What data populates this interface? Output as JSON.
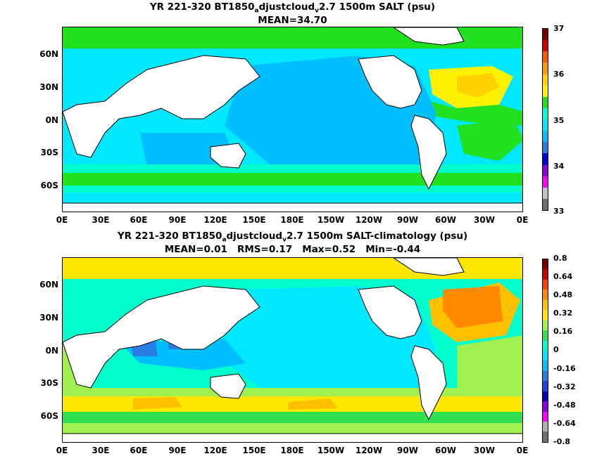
{
  "panels": [
    {
      "title_main": "YR 221-320 BT1850",
      "title_sub": "a",
      "title_mid": "djustcloud",
      "title_sub2": "v",
      "title_end": "2.7 1500m SALT (psu)",
      "stats": "MEAN=34.70",
      "colorbar": {
        "labels": [
          "37",
          "36",
          "35",
          "34",
          "33"
        ],
        "colors": [
          "#7a0000",
          "#d40000",
          "#ff5a00",
          "#ff9a00",
          "#ffd200",
          "#fff200",
          "#20e020",
          "#00ffcc",
          "#00e8ff",
          "#00bfff",
          "#2a7de1",
          "#0000e0",
          "#8a00e0",
          "#ff00ff",
          "#c0c0c0",
          "#707070"
        ]
      }
    },
    {
      "title_main": "YR 221-320 BT1850",
      "title_sub": "a",
      "title_mid": "djustcloud",
      "title_sub2": "v",
      "title_end": "2.7 1500m SALT-climatology (psu)",
      "stats": "MEAN=0.01   RMS=0.17   Max=0.52   Min=-0.44",
      "colorbar": {
        "labels": [
          "0.8",
          "0.64",
          "0.48",
          "0.32",
          "0.16",
          "0",
          "-0.16",
          "-0.32",
          "-0.48",
          "-0.64",
          "-0.8"
        ],
        "colors": [
          "#7a0000",
          "#c80000",
          "#ff4000",
          "#ff8a00",
          "#ffc000",
          "#ffe800",
          "#a0f050",
          "#30e050",
          "#00ffcc",
          "#00e8ff",
          "#00bfff",
          "#2a7de1",
          "#2040e0",
          "#0000c0",
          "#8a00e0",
          "#ff00ff",
          "#b0b0b0",
          "#707070"
        ]
      }
    }
  ],
  "lat_labels": [
    "60N",
    "30N",
    "0N",
    "30S",
    "60S"
  ],
  "lon_labels": [
    "0E",
    "30E",
    "60E",
    "90E",
    "120E",
    "150E",
    "180E",
    "150W",
    "120W",
    "90W",
    "60W",
    "30W",
    "0E"
  ]
}
